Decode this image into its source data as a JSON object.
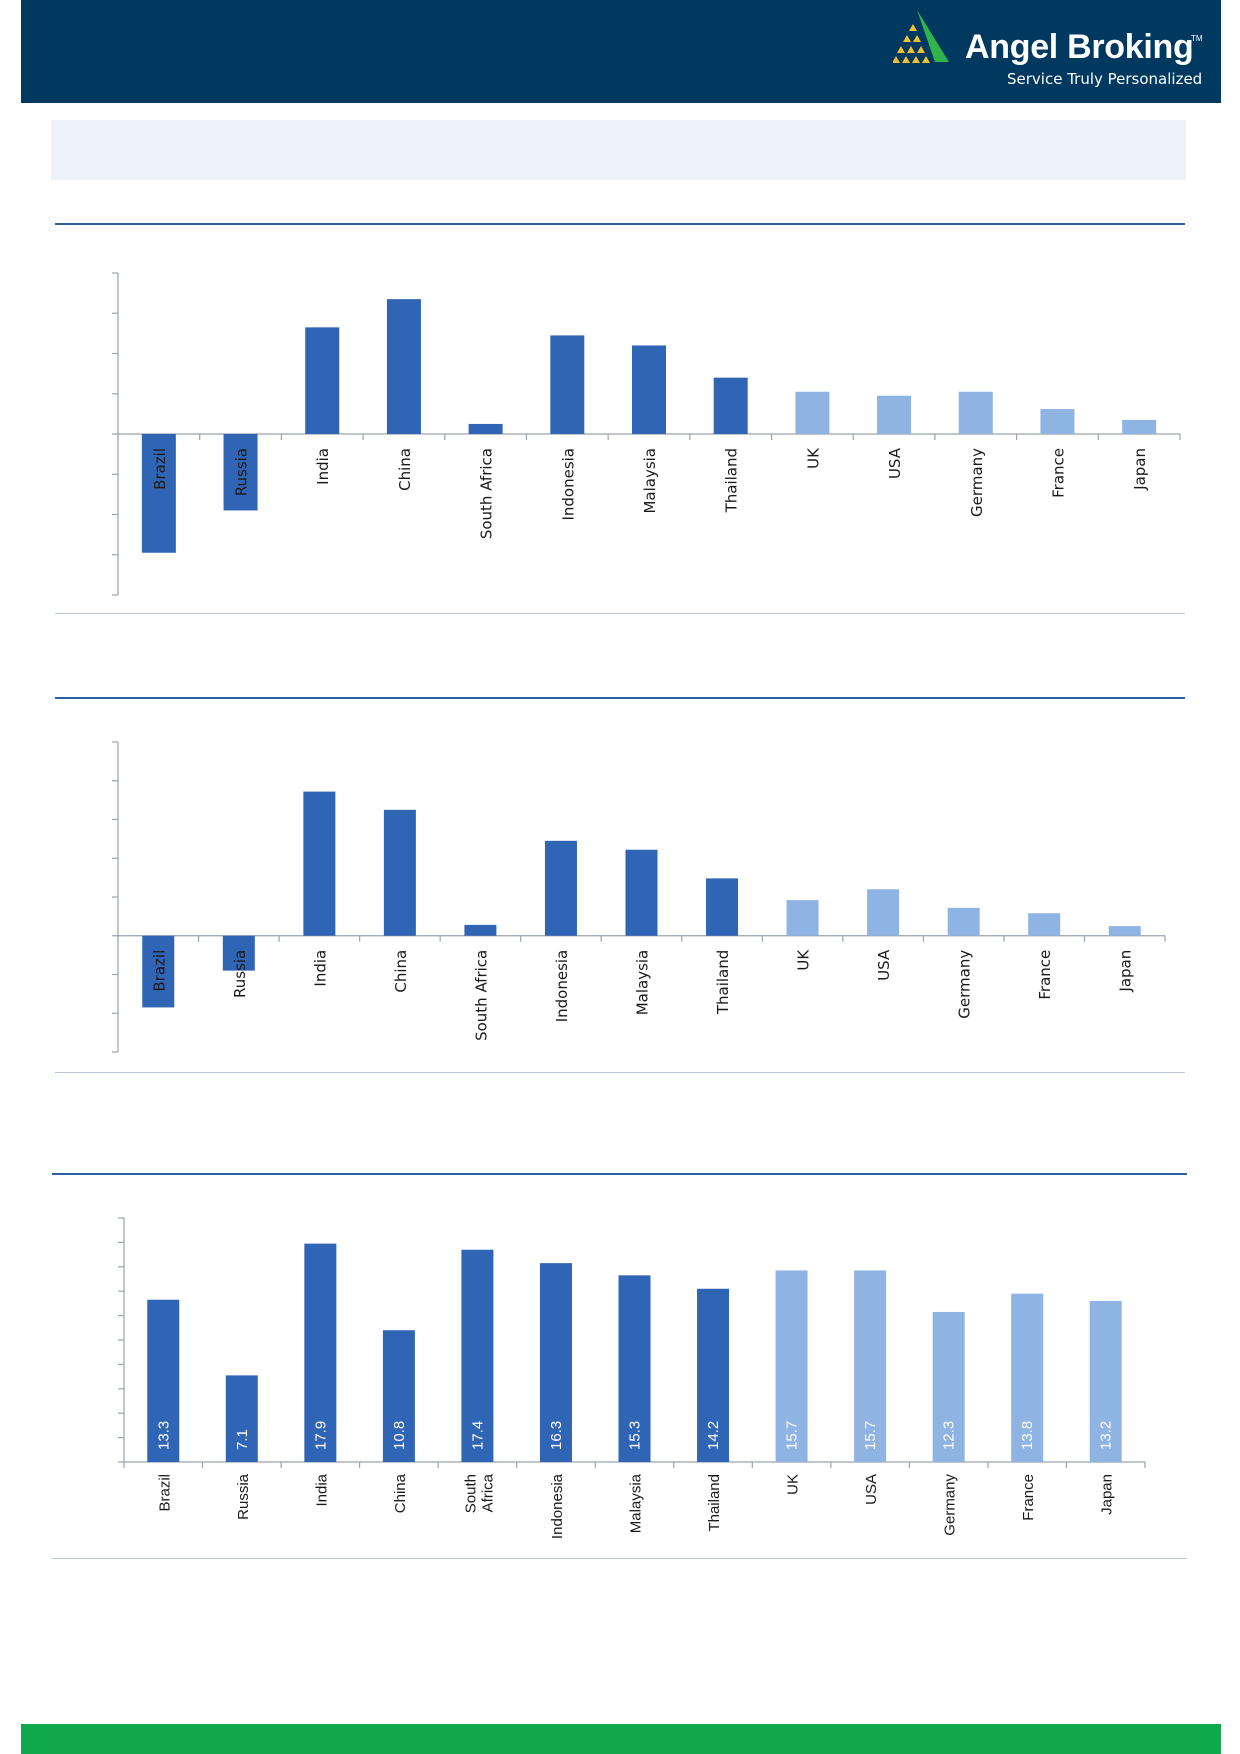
{
  "brand": {
    "name": "Angel Broking",
    "trademark": "TM",
    "tagline": "Service Truly Personalized",
    "colors": {
      "header": "#00395f",
      "footer": "#0fa84a",
      "logo_green": "#2fb34a",
      "logo_gold": "#f2c12e"
    }
  },
  "chart_data": [
    {
      "type": "bar",
      "title": "",
      "categories": [
        "Brazil",
        "Russia",
        "India",
        "China",
        "South Africa",
        "Indonesia",
        "Malaysia",
        "Thailand",
        "UK",
        "USA",
        "Germany",
        "France",
        "Japan"
      ],
      "values": [
        -2.95,
        -1.9,
        2.65,
        3.35,
        0.25,
        2.45,
        2.2,
        1.4,
        1.05,
        0.95,
        1.05,
        0.62,
        0.35
      ],
      "colors": [
        "#3065b5",
        "#3065b5",
        "#3065b5",
        "#3065b5",
        "#3065b5",
        "#3065b5",
        "#3065b5",
        "#3065b5",
        "#8fb4e3",
        "#8fb4e3",
        "#8fb4e3",
        "#8fb4e3",
        "#8fb4e3"
      ],
      "ylim": [
        -4,
        4
      ],
      "yticks": [
        -4,
        -3,
        -2,
        -1,
        0,
        1,
        2,
        3,
        4
      ],
      "tick_labels_shown": false,
      "label_position": "inside-axis-rotated",
      "grid": false
    },
    {
      "type": "bar",
      "title": "",
      "categories": [
        "Brazil",
        "Russia",
        "India",
        "China",
        "South Africa",
        "Indonesia",
        "Malaysia",
        "Thailand",
        "UK",
        "USA",
        "Germany",
        "France",
        "Japan"
      ],
      "values": [
        -1.85,
        -0.9,
        3.72,
        3.25,
        0.28,
        2.45,
        2.22,
        1.48,
        0.92,
        1.2,
        0.72,
        0.58,
        0.25
      ],
      "colors": [
        "#3065b5",
        "#3065b5",
        "#3065b5",
        "#3065b5",
        "#3065b5",
        "#3065b5",
        "#3065b5",
        "#3065b5",
        "#8fb4e3",
        "#8fb4e3",
        "#8fb4e3",
        "#8fb4e3",
        "#8fb4e3"
      ],
      "ylim": [
        -3,
        5
      ],
      "yticks": [
        -3,
        -2,
        -1,
        0,
        1,
        2,
        3,
        4,
        5
      ],
      "tick_labels_shown": false,
      "label_position": "inside-axis-rotated",
      "grid": false
    },
    {
      "type": "bar",
      "title": "",
      "categories": [
        "Brazil",
        "Russia",
        "India",
        "China",
        "South Africa",
        "Indonesia",
        "Malaysia",
        "Thailand",
        "UK",
        "USA",
        "Germany",
        "France",
        "Japan"
      ],
      "category_lines": [
        [
          "Brazil"
        ],
        [
          "Russia"
        ],
        [
          "India"
        ],
        [
          "China"
        ],
        [
          "South",
          "Africa"
        ],
        [
          "Indonesia"
        ],
        [
          "Malaysia"
        ],
        [
          "Thailand"
        ],
        [
          "UK"
        ],
        [
          "USA"
        ],
        [
          "Germany"
        ],
        [
          "France"
        ],
        [
          "Japan"
        ]
      ],
      "values": [
        13.3,
        7.1,
        17.9,
        10.8,
        17.4,
        16.3,
        15.3,
        14.2,
        15.7,
        15.7,
        12.3,
        13.8,
        13.2
      ],
      "data_labels": [
        "13.3",
        "7.1",
        "17.9",
        "10.8",
        "17.4",
        "16.3",
        "15.3",
        "14.2",
        "15.7",
        "15.7",
        "12.3",
        "13.8",
        "13.2"
      ],
      "colors": [
        "#3065b5",
        "#3065b5",
        "#3065b5",
        "#3065b5",
        "#3065b5",
        "#3065b5",
        "#3065b5",
        "#3065b5",
        "#8fb4e3",
        "#8fb4e3",
        "#8fb4e3",
        "#8fb4e3",
        "#8fb4e3"
      ],
      "ylim": [
        0,
        20
      ],
      "yticks": [
        0,
        2,
        4,
        6,
        8,
        10,
        12,
        14,
        16,
        18,
        20
      ],
      "tick_labels_shown": false,
      "label_position": "below-axis-rotated",
      "grid": false
    }
  ]
}
